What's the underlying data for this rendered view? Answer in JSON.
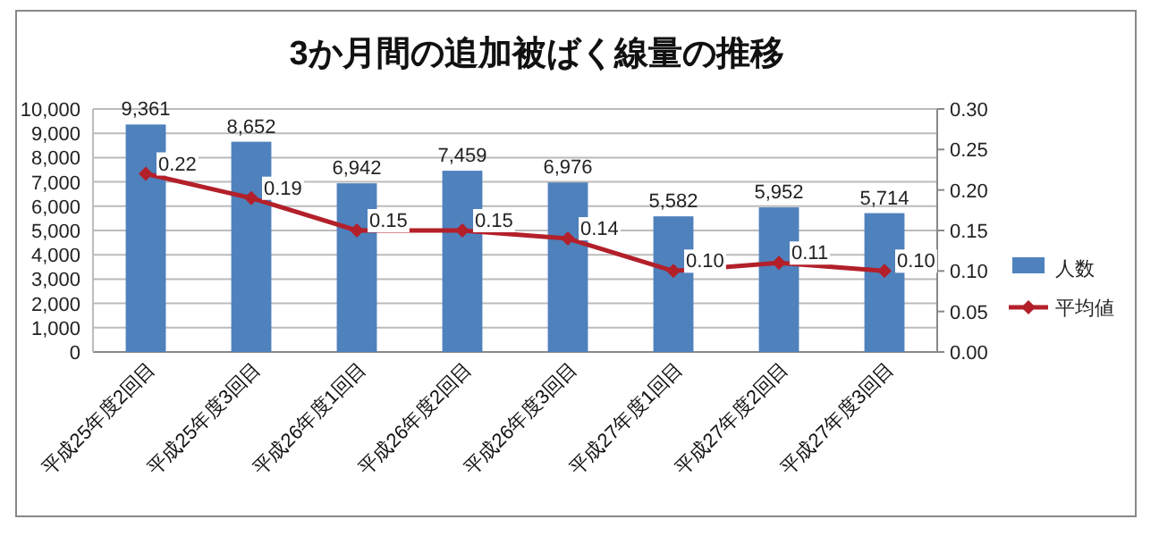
{
  "chart_data": {
    "type": "bar",
    "title": "3か月間の追加被ばく線量の推移",
    "categories": [
      "平成25年度2回目",
      "平成25年度3回目",
      "平成26年度1回目",
      "平成26年度2回目",
      "平成26年度3回目",
      "平成27年度1回目",
      "平成27年度2回目",
      "平成27年度3回目"
    ],
    "series": [
      {
        "name": "人数",
        "color": "#4f81bd",
        "values": [
          9361,
          8652,
          6942,
          7459,
          6976,
          5582,
          5952,
          5714
        ],
        "value_labels": [
          "9,361",
          "8,652",
          "6,942",
          "7,459",
          "6,976",
          "5,582",
          "5,952",
          "5,714"
        ]
      },
      {
        "name": "平均値",
        "type": "line",
        "axis": "y2",
        "color": "#b3202a",
        "marker": "diamond",
        "values": [
          0.22,
          0.19,
          0.15,
          0.15,
          0.14,
          0.1,
          0.11,
          0.1
        ],
        "value_labels": [
          "0.22",
          "0.19",
          "0.15",
          "0.15",
          "0.14",
          "0.10",
          "0.11",
          "0.10"
        ]
      }
    ],
    "ylim": [
      0,
      10000
    ],
    "yticks": [
      0,
      {
        "value": 1000,
        "label": "1,000"
      },
      {
        "value": 2000,
        "label": "2,000"
      },
      {
        "value": 3000,
        "label": "3,000"
      },
      {
        "value": 4000,
        "label": "4,000"
      },
      {
        "value": 5000,
        "label": "5,000"
      },
      {
        "value": 6000,
        "label": "6,000"
      },
      {
        "value": 7000,
        "label": "7,000"
      },
      {
        "value": 8000,
        "label": "8,000"
      },
      {
        "value": 9000,
        "label": "9,000"
      },
      {
        "value": 10000,
        "label": "10,000"
      }
    ],
    "y2lim": [
      0,
      0.3
    ],
    "y2ticks": [
      {
        "value": 0,
        "label": "0.00"
      },
      {
        "value": 0.05,
        "label": "0.05"
      },
      {
        "value": 0.1,
        "label": "0.10"
      },
      {
        "value": 0.15,
        "label": "0.15"
      },
      {
        "value": 0.2,
        "label": "0.20"
      },
      {
        "value": 0.25,
        "label": "0.25"
      },
      {
        "value": 0.3,
        "label": "0.30"
      }
    ],
    "grid": "y",
    "legend": "right"
  }
}
